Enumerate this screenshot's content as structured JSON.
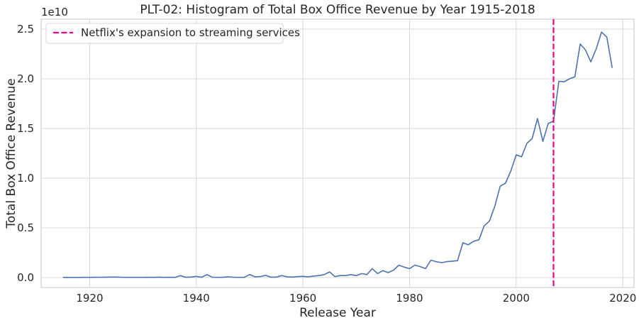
{
  "chart_data": {
    "type": "line",
    "title": "PLT-02: Histogram of Total Box Office Revenue by Year 1915-2018",
    "xlabel": "Release Year",
    "ylabel": "Total Box Office Revenue",
    "y_offset_label": "1e10",
    "xlim": [
      1910.9,
      2022.1
    ],
    "ylim": [
      -1.05,
      2.6
    ],
    "x_ticks": [
      1920,
      1940,
      1960,
      1980,
      2000,
      2020
    ],
    "x_tick_labels": [
      "1920",
      "1940",
      "1960",
      "1980",
      "2000",
      "2020"
    ],
    "y_ticks": [
      0.0,
      0.5,
      1.0,
      1.5,
      2.0,
      2.5
    ],
    "y_tick_labels": [
      "0.0",
      "0.5",
      "1.0",
      "1.5",
      "2.0",
      "2.5"
    ],
    "grid": true,
    "legend": {
      "placement": "top-left",
      "entries": [
        {
          "label": "Netflix's expansion to streaming services",
          "style": "dashed",
          "color": "#e6008a"
        }
      ]
    },
    "vline": {
      "x": 2007,
      "color": "#e6008a",
      "style": "dashed"
    },
    "colors": {
      "series": "#4c72b0",
      "grid": "#d7d7d7",
      "spine": "#cfcfcf"
    },
    "series": [
      {
        "unit_scale": "1e10",
        "x": [
          1915,
          1916,
          1917,
          1918,
          1919,
          1920,
          1921,
          1922,
          1923,
          1924,
          1925,
          1926,
          1927,
          1928,
          1929,
          1930,
          1931,
          1932,
          1933,
          1934,
          1935,
          1936,
          1937,
          1938,
          1939,
          1940,
          1941,
          1942,
          1943,
          1944,
          1945,
          1946,
          1947,
          1948,
          1949,
          1950,
          1951,
          1952,
          1953,
          1954,
          1955,
          1956,
          1957,
          1958,
          1959,
          1960,
          1961,
          1962,
          1963,
          1964,
          1965,
          1966,
          1967,
          1968,
          1969,
          1970,
          1971,
          1972,
          1973,
          1974,
          1975,
          1976,
          1977,
          1978,
          1979,
          1980,
          1981,
          1982,
          1983,
          1984,
          1985,
          1986,
          1987,
          1988,
          1989,
          1990,
          1991,
          1992,
          1993,
          1994,
          1995,
          1996,
          1997,
          1998,
          1999,
          2000,
          2001,
          2002,
          2003,
          2004,
          2005,
          2006,
          2007,
          2008,
          2009,
          2010,
          2011,
          2012,
          2013,
          2014,
          2015,
          2016,
          2017,
          2018
        ],
        "y": [
          0.001,
          0.001,
          0.001,
          0.001,
          0.002,
          0.002,
          0.003,
          0.003,
          0.004,
          0.005,
          0.005,
          0.003,
          0.002,
          0.002,
          0.002,
          0.002,
          0.003,
          0.002,
          0.004,
          0.002,
          0.003,
          0.002,
          0.02,
          0.003,
          0.005,
          0.012,
          0.003,
          0.03,
          0.003,
          0.002,
          0.003,
          0.008,
          0.003,
          0.002,
          0.002,
          0.03,
          0.008,
          0.01,
          0.022,
          0.004,
          0.004,
          0.02,
          0.008,
          0.005,
          0.01,
          0.012,
          0.008,
          0.015,
          0.02,
          0.03,
          0.057,
          0.01,
          0.02,
          0.02,
          0.03,
          0.02,
          0.04,
          0.03,
          0.09,
          0.04,
          0.07,
          0.05,
          0.075,
          0.125,
          0.105,
          0.09,
          0.125,
          0.11,
          0.09,
          0.175,
          0.16,
          0.15,
          0.16,
          0.165,
          0.17,
          0.35,
          0.33,
          0.365,
          0.38,
          0.52,
          0.57,
          0.72,
          0.92,
          0.95,
          1.075,
          1.235,
          1.215,
          1.35,
          1.4,
          1.6,
          1.37,
          1.55,
          1.575,
          1.975,
          1.97,
          2.0,
          2.02,
          2.35,
          2.29,
          2.17,
          2.3,
          2.47,
          2.42,
          2.11
        ]
      }
    ]
  }
}
